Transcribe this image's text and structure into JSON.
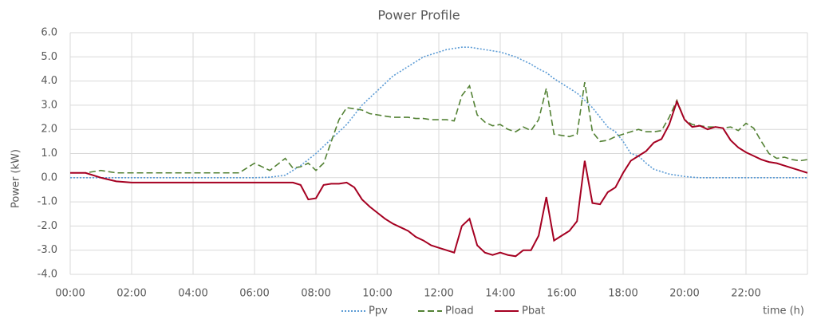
{
  "chart_data": {
    "type": "line",
    "title": "Power Profile",
    "y_label": "Power (kW)",
    "x_label": "time (h)",
    "x": [
      0,
      0.5,
      1,
      1.5,
      2,
      3,
      4,
      5,
      5.5,
      6,
      6.5,
      7,
      7.25,
      7.5,
      7.75,
      8,
      8.25,
      8.5,
      8.75,
      9,
      9.25,
      9.5,
      9.75,
      10,
      10.25,
      10.5,
      10.75,
      11,
      11.25,
      11.5,
      11.75,
      12,
      12.25,
      12.5,
      12.75,
      13,
      13.25,
      13.5,
      13.75,
      14,
      14.25,
      14.5,
      14.75,
      15,
      15.25,
      15.5,
      15.75,
      16,
      16.25,
      16.5,
      16.75,
      17,
      17.25,
      17.5,
      17.75,
      18,
      18.25,
      18.5,
      18.75,
      19,
      19.25,
      19.5,
      19.75,
      20,
      20.25,
      20.5,
      20.75,
      21,
      21.25,
      21.5,
      21.75,
      22,
      22.25,
      22.5,
      22.75,
      23,
      23.25,
      23.5,
      23.75,
      24
    ],
    "series": [
      {
        "name": "Ppv",
        "color": "#5b9bd5",
        "dash": "dotted",
        "values": [
          0,
          0,
          0,
          0,
          0,
          0,
          0,
          0,
          0,
          0,
          0.02,
          0.1,
          0.3,
          0.5,
          0.75,
          1.0,
          1.3,
          1.6,
          1.9,
          2.2,
          2.6,
          3.0,
          3.3,
          3.6,
          3.9,
          4.2,
          4.4,
          4.6,
          4.8,
          5.0,
          5.1,
          5.2,
          5.3,
          5.35,
          5.4,
          5.4,
          5.35,
          5.3,
          5.25,
          5.2,
          5.1,
          5.0,
          4.85,
          4.7,
          4.5,
          4.35,
          4.1,
          3.9,
          3.7,
          3.5,
          3.2,
          2.9,
          2.5,
          2.1,
          1.9,
          1.5,
          1.0,
          0.9,
          0.6,
          0.35,
          0.25,
          0.15,
          0.1,
          0.05,
          0.02,
          0,
          0,
          0,
          0,
          0,
          0,
          0,
          0,
          0,
          0,
          0,
          0,
          0,
          0,
          0
        ]
      },
      {
        "name": "Pload",
        "color": "#548235",
        "dash": "dashed",
        "values": [
          0.2,
          0.2,
          0.3,
          0.2,
          0.2,
          0.2,
          0.2,
          0.2,
          0.2,
          0.6,
          0.3,
          0.8,
          0.4,
          0.45,
          0.6,
          0.3,
          0.6,
          1.5,
          2.4,
          2.9,
          2.85,
          2.8,
          2.65,
          2.6,
          2.55,
          2.5,
          2.5,
          2.5,
          2.45,
          2.45,
          2.4,
          2.4,
          2.4,
          2.35,
          3.4,
          3.8,
          2.6,
          2.3,
          2.15,
          2.2,
          2.0,
          1.9,
          2.1,
          1.95,
          2.4,
          3.7,
          1.8,
          1.75,
          1.7,
          1.8,
          3.95,
          1.9,
          1.5,
          1.55,
          1.7,
          1.8,
          1.9,
          2.0,
          1.9,
          1.9,
          1.95,
          2.5,
          3.2,
          2.4,
          2.2,
          2.15,
          2.1,
          2.1,
          2.05,
          2.1,
          1.95,
          2.25,
          2.05,
          1.5,
          1.0,
          0.8,
          0.85,
          0.75,
          0.7,
          0.75
        ]
      },
      {
        "name": "Pbat",
        "color": "#a50021",
        "dash": "solid",
        "values": [
          0.2,
          0.2,
          0.0,
          -0.15,
          -0.2,
          -0.2,
          -0.2,
          -0.2,
          -0.2,
          -0.2,
          -0.2,
          -0.2,
          -0.2,
          -0.3,
          -0.9,
          -0.85,
          -0.3,
          -0.25,
          -0.25,
          -0.2,
          -0.4,
          -0.9,
          -1.2,
          -1.45,
          -1.7,
          -1.9,
          -2.05,
          -2.2,
          -2.45,
          -2.6,
          -2.8,
          -2.9,
          -3.0,
          -3.1,
          -2.0,
          -1.7,
          -2.8,
          -3.1,
          -3.2,
          -3.1,
          -3.2,
          -3.25,
          -3.0,
          -3.0,
          -2.4,
          -0.8,
          -2.6,
          -2.4,
          -2.2,
          -1.8,
          0.7,
          -1.05,
          -1.1,
          -0.6,
          -0.4,
          0.2,
          0.7,
          0.9,
          1.1,
          1.45,
          1.6,
          2.2,
          3.15,
          2.4,
          2.1,
          2.15,
          2.0,
          2.1,
          2.05,
          1.55,
          1.25,
          1.05,
          0.9,
          0.75,
          0.65,
          0.6,
          0.5,
          0.4,
          0.3,
          0.2
        ]
      }
    ],
    "xlim": [
      0,
      24
    ],
    "xticks": [
      {
        "value": 0,
        "label": "00:00"
      },
      {
        "value": 2,
        "label": "02:00"
      },
      {
        "value": 4,
        "label": "04:00"
      },
      {
        "value": 6,
        "label": "06:00"
      },
      {
        "value": 8,
        "label": "08:00"
      },
      {
        "value": 10,
        "label": "10:00"
      },
      {
        "value": 12,
        "label": "12:00"
      },
      {
        "value": 14,
        "label": "14:00"
      },
      {
        "value": 16,
        "label": "16:00"
      },
      {
        "value": 18,
        "label": "18:00"
      },
      {
        "value": 20,
        "label": "20:00"
      },
      {
        "value": 22,
        "label": "22:00"
      }
    ],
    "ylim": [
      -4,
      6
    ],
    "yticks": [
      {
        "value": 6,
        "label": "6.0"
      },
      {
        "value": 5,
        "label": "5.0"
      },
      {
        "value": 4,
        "label": "4.0"
      },
      {
        "value": 3,
        "label": "3.0"
      },
      {
        "value": 2,
        "label": "2.0"
      },
      {
        "value": 1,
        "label": "1.0"
      },
      {
        "value": 0,
        "label": "0.0"
      },
      {
        "value": -1,
        "label": "-1.0"
      },
      {
        "value": -2,
        "label": "-2.0"
      },
      {
        "value": -3,
        "label": "-3.0"
      },
      {
        "value": -4,
        "label": "-4.0"
      }
    ],
    "grid": true
  }
}
